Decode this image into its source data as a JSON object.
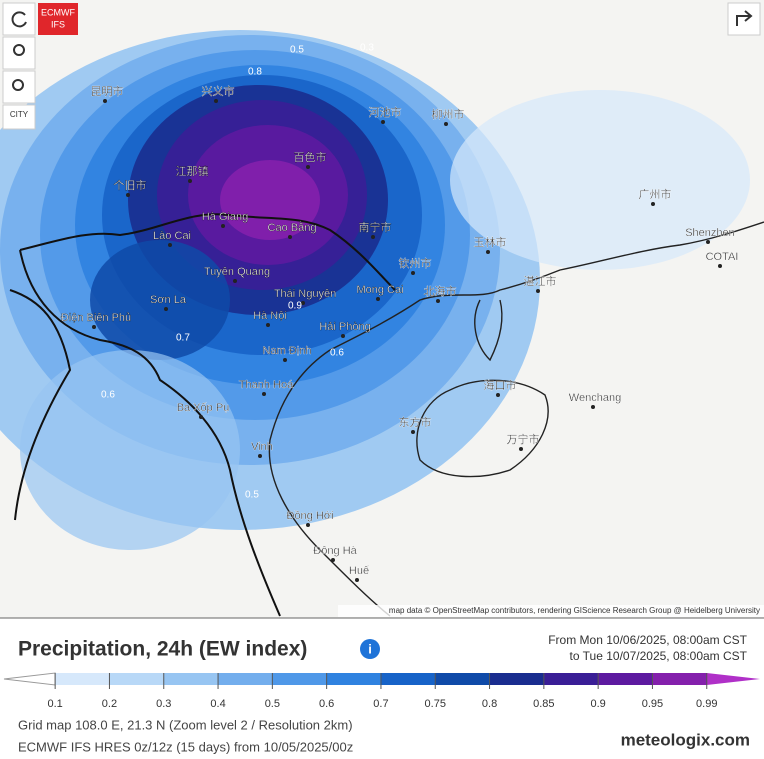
{
  "badge": {
    "line1": "ECMWF",
    "line2": "IFS"
  },
  "city_button": "CITY",
  "map": {
    "attribution": "map data © OpenStreetMap contributors, rendering GIScience Research Group @ Heidelberg University",
    "places": [
      "Hà Giang",
      "Cao Bằng",
      "Lào Cai",
      "Tuyên Quang",
      "Thái Nguyên",
      "Sơn La",
      "Hà Nội",
      "Hải Phòng",
      "Mong Cai",
      "Điện Biên Phủ",
      "Nam Định",
      "Thanh Hoá",
      "Vinh",
      "Đồng Hới",
      "Đông Hà",
      "Huế",
      "Ba Xốp Pụ",
      "Shenzhen",
      "COTAI",
      "Wenchang",
      "兴义市",
      "百色市",
      "南宁市",
      "钦州市",
      "北海市",
      "湛江市",
      "海口市",
      "广州市",
      "河池市",
      "柳州市",
      "玉林市",
      "昆明市",
      "个旧市",
      "江那镇",
      "东方市",
      "万宁市"
    ],
    "contour_labels": [
      "0.8",
      "0.5",
      "0.3",
      "0.9",
      "0.7",
      "0.6",
      "0.5",
      "0.6"
    ]
  },
  "panel": {
    "title": "Precipitation, 24h (EW index)",
    "period_from": "From Mon 10/06/2025, 08:00am CST",
    "period_to": "to Tue 10/07/2025, 08:00am CST",
    "legend": {
      "ticks": [
        0.1,
        0.2,
        0.3,
        0.4,
        0.5,
        0.6,
        0.7,
        0.75,
        0.8,
        0.85,
        0.9,
        0.95,
        0.99
      ],
      "colors": [
        "#ffffff",
        "#d6e8fb",
        "#b8d8f7",
        "#97c5f2",
        "#73aeed",
        "#4f98e8",
        "#2f82e0",
        "#1763c8",
        "#0f4aa8",
        "#1a2d8f",
        "#3a1e96",
        "#5d1aa0",
        "#8420ac",
        "#b030c8"
      ]
    },
    "grid_info": "Grid map 108.0 E, 21.3 N (Zoom level 2 / Resolution 2km)",
    "model_info": "ECMWF IFS HRES 0z/12z (15 days) from 10/05/2025/00z",
    "brand": "meteologix.com"
  }
}
